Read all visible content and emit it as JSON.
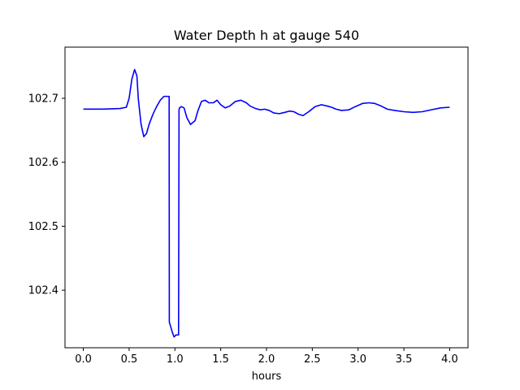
{
  "chart_data": {
    "type": "line",
    "title": "Water Depth h at gauge 540",
    "xlabel": "hours",
    "ylabel": "",
    "xlim": [
      -0.2,
      4.2
    ],
    "ylim": [
      102.31,
      102.78
    ],
    "xticks": [
      0.0,
      0.5,
      1.0,
      1.5,
      2.0,
      2.5,
      3.0,
      3.5,
      4.0
    ],
    "xtick_labels": [
      "0.0",
      "0.5",
      "1.0",
      "1.5",
      "2.0",
      "2.5",
      "3.0",
      "3.5",
      "4.0"
    ],
    "yticks": [
      102.4,
      102.5,
      102.6,
      102.7
    ],
    "ytick_labels": [
      "102.4",
      "102.5",
      "102.6",
      "102.7"
    ],
    "grid": false,
    "series": [
      {
        "color": "#0000ff",
        "x": [
          0.0,
          0.2,
          0.4,
          0.47,
          0.5,
          0.53,
          0.56,
          0.585,
          0.6,
          0.63,
          0.66,
          0.69,
          0.72,
          0.76,
          0.8,
          0.84,
          0.88,
          0.92,
          0.937,
          0.939,
          0.95,
          0.97,
          0.99,
          1.0,
          1.01,
          1.04,
          1.045,
          1.05,
          1.07,
          1.1,
          1.13,
          1.17,
          1.22,
          1.25,
          1.29,
          1.33,
          1.37,
          1.42,
          1.46,
          1.5,
          1.55,
          1.6,
          1.66,
          1.72,
          1.78,
          1.82,
          1.88,
          1.93,
          1.98,
          2.03,
          2.08,
          2.14,
          2.2,
          2.25,
          2.3,
          2.35,
          2.4,
          2.47,
          2.53,
          2.6,
          2.66,
          2.71,
          2.76,
          2.82,
          2.9,
          2.97,
          3.05,
          3.12,
          3.18,
          3.25,
          3.32,
          3.4,
          3.5,
          3.6,
          3.7,
          3.8,
          3.9,
          4.0
        ],
        "y": [
          102.683,
          102.683,
          102.684,
          102.686,
          102.7,
          102.73,
          102.745,
          102.735,
          102.7,
          102.66,
          102.64,
          102.645,
          102.66,
          102.675,
          102.687,
          102.697,
          102.703,
          102.703,
          102.703,
          102.35,
          102.345,
          102.335,
          102.327,
          102.328,
          102.33,
          102.33,
          102.682,
          102.685,
          102.687,
          102.685,
          102.67,
          102.659,
          102.665,
          102.68,
          102.695,
          102.697,
          102.693,
          102.693,
          102.697,
          102.69,
          102.685,
          102.688,
          102.695,
          102.697,
          102.693,
          102.688,
          102.684,
          102.682,
          102.683,
          102.681,
          102.677,
          102.676,
          102.678,
          102.68,
          102.679,
          102.675,
          102.673,
          102.68,
          102.687,
          102.69,
          102.688,
          102.686,
          102.683,
          102.681,
          102.682,
          102.687,
          102.692,
          102.693,
          102.692,
          102.688,
          102.683,
          102.681,
          102.679,
          102.678,
          102.679,
          102.682,
          102.685,
          102.686
        ]
      }
    ]
  }
}
